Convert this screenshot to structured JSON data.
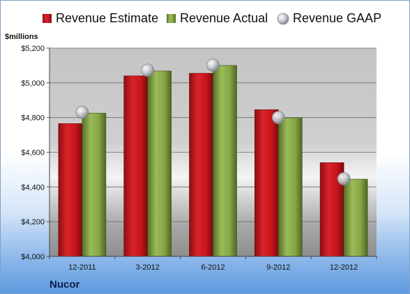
{
  "colors": {
    "estimate": "#c8161d",
    "actual": "#7a9a3c",
    "gaap": "#b9bcc4"
  },
  "legend": {
    "estimate": "Revenue Estimate",
    "actual": "Revenue Actual",
    "gaap": "Revenue GAAP"
  },
  "unit_label": "$millions",
  "company": "Nucor",
  "chart_data": {
    "type": "bar",
    "categories": [
      "12-2011",
      "3-2012",
      "6-2012",
      "9-2012",
      "12-2012"
    ],
    "series": [
      {
        "name": "Revenue Estimate",
        "values": [
          4765,
          5040,
          5055,
          4845,
          4540
        ]
      },
      {
        "name": "Revenue Actual",
        "values": [
          4825,
          5068,
          5100,
          4798,
          4445
        ]
      },
      {
        "name": "Revenue GAAP",
        "type": "scatter",
        "values": [
          4830,
          5072,
          5102,
          4800,
          4447
        ]
      }
    ],
    "ylim": [
      4000,
      5200
    ],
    "yticks": [
      4000,
      4200,
      4400,
      4600,
      4800,
      5000,
      5200
    ],
    "ytick_labels": [
      "$4,000",
      "$4,200",
      "$4,400",
      "$4,600",
      "$4,800",
      "$5,000",
      "$5,200"
    ],
    "ylabel": "$millions",
    "grid": true,
    "legend_position": "top"
  }
}
